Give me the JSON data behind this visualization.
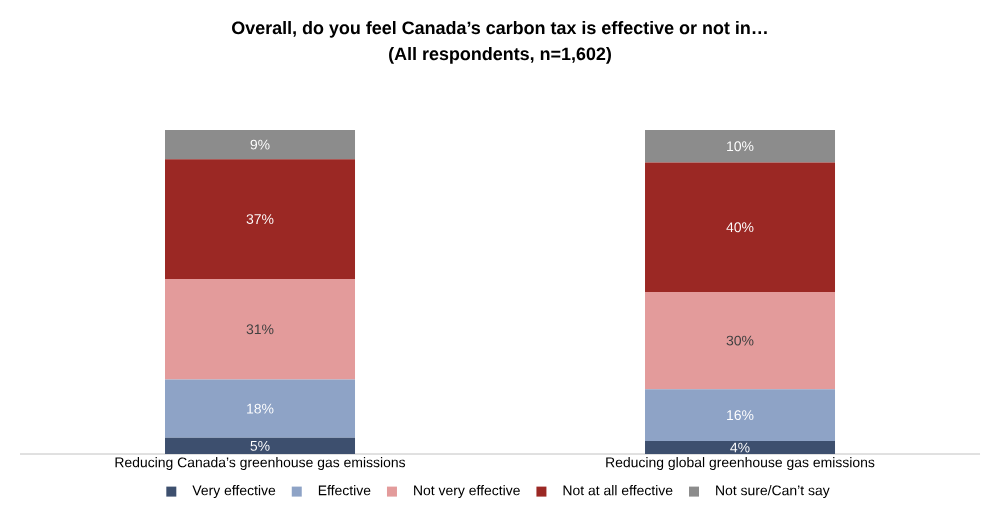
{
  "chart_data": {
    "type": "bar",
    "stacked": true,
    "title": "Overall, do you feel Canada’s carbon tax is effective or not in…",
    "subtitle": "(All respondents, n=1,602)",
    "categories": [
      "Reducing Canada’s greenhouse gas emissions",
      "Reducing global greenhouse gas emissions"
    ],
    "legend": "bottom",
    "series": [
      {
        "name": "Very effective",
        "color": "#3d4f6e",
        "values": [
          5,
          4
        ],
        "value_labels": [
          "5%",
          "4%"
        ]
      },
      {
        "name": "Effective",
        "color": "#8ea3c6",
        "values": [
          18,
          16
        ],
        "value_labels": [
          "18%",
          "16%"
        ]
      },
      {
        "name": "Not very effective",
        "color": "#e39b9b",
        "values": [
          31,
          30
        ],
        "value_labels": [
          "31%",
          "30%"
        ]
      },
      {
        "name": "Not at all effective",
        "color": "#9b2824",
        "values": [
          37,
          40
        ],
        "value_labels": [
          "37%",
          "40%"
        ]
      },
      {
        "name": "Not sure/Can’t say",
        "color": "#8c8c8c",
        "values": [
          9,
          10
        ],
        "value_labels": [
          "9%",
          "10%"
        ]
      }
    ]
  }
}
